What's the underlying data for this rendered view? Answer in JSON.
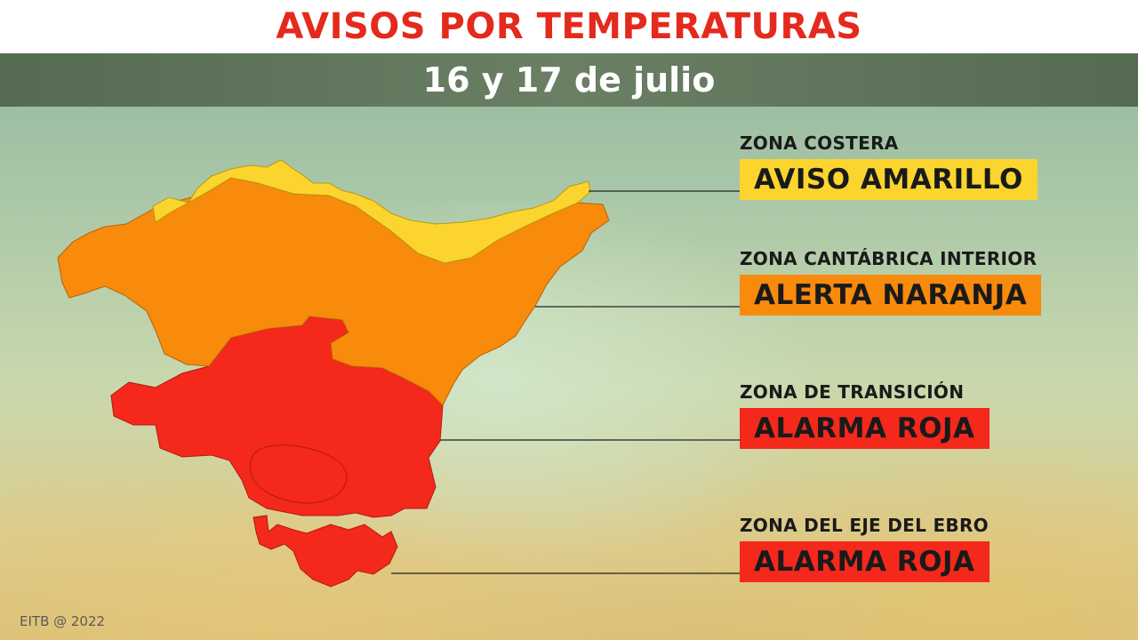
{
  "title": "AVISOS POR TEMPERATURAS",
  "subtitle": "16 y 17 de julio",
  "colors": {
    "yellow": "#fbd52e",
    "orange": "#f88a0c",
    "red": "#f5281c",
    "title_red": "#e42a1d"
  },
  "zones": [
    {
      "name": "ZONA COSTERA",
      "warning": "AVISO AMARILLO",
      "level": "yellow",
      "color": "#fbd52e"
    },
    {
      "name": "ZONA CANTÁBRICA INTERIOR",
      "warning": "ALERTA NARANJA",
      "level": "orange",
      "color": "#f88a0c"
    },
    {
      "name": "ZONA DE TRANSICIÓN",
      "warning": "ALARMA ROJA",
      "level": "red",
      "color": "#f5281c"
    },
    {
      "name": "ZONA DEL EJE DEL EBRO",
      "warning": "ALARMA ROJA",
      "level": "red",
      "color": "#f5281c"
    }
  ],
  "footer": "EITB @ 2022"
}
